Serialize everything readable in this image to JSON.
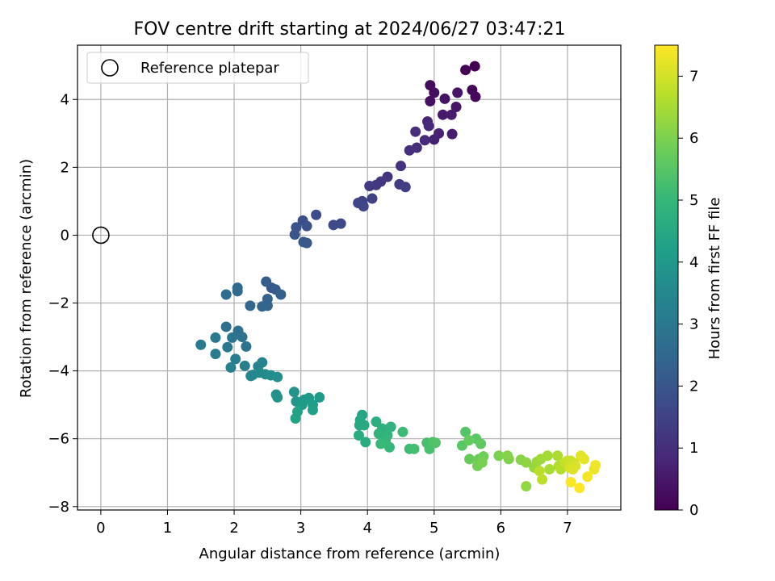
{
  "chart_data": {
    "type": "scatter",
    "title": "FOV centre drift starting at 2024/06/27 03:47:21",
    "xlabel": "Angular distance from reference (arcmin)",
    "ylabel": "Rotation from reference (arcmin)",
    "xlim": [
      -0.35,
      7.8
    ],
    "ylim": [
      -8.1,
      5.6
    ],
    "xticks": [
      0,
      1,
      2,
      3,
      4,
      5,
      6,
      7
    ],
    "yticks": [
      -8,
      -6,
      -4,
      -2,
      0,
      2,
      4
    ],
    "grid": true,
    "legend": {
      "position": "top-left",
      "entries": [
        "Reference platepar"
      ]
    },
    "reference_point": {
      "x": 0,
      "y": 0,
      "marker": "open-circle"
    },
    "colorbar": {
      "label": "Hours from first FF file",
      "colormap": "viridis",
      "range": [
        0,
        7.5
      ],
      "ticks": [
        0,
        1,
        2,
        3,
        4,
        5,
        6,
        7
      ]
    },
    "series": [
      {
        "points": [
          [
            5.61,
            4.98
          ],
          [
            5.47,
            4.87
          ],
          [
            5.57,
            4.28
          ],
          [
            5.62,
            4.08
          ],
          [
            4.94,
            4.42
          ],
          [
            5.0,
            4.2
          ],
          [
            4.94,
            3.95
          ],
          [
            5.16,
            4.02
          ],
          [
            5.35,
            4.2
          ],
          [
            5.33,
            3.78
          ],
          [
            5.13,
            3.55
          ],
          [
            5.26,
            3.55
          ],
          [
            5.27,
            2.98
          ],
          [
            5.0,
            2.82
          ],
          [
            5.07,
            3.0
          ],
          [
            4.9,
            3.35
          ],
          [
            4.92,
            3.22
          ],
          [
            4.86,
            2.8
          ],
          [
            4.74,
            2.58
          ],
          [
            4.72,
            3.05
          ],
          [
            4.63,
            2.5
          ],
          [
            4.5,
            2.04
          ],
          [
            4.3,
            1.72
          ],
          [
            4.2,
            1.58
          ],
          [
            4.13,
            1.48
          ],
          [
            4.03,
            1.45
          ],
          [
            4.48,
            1.5
          ],
          [
            4.57,
            1.42
          ],
          [
            4.07,
            1.08
          ],
          [
            3.92,
            1.0
          ],
          [
            3.86,
            0.95
          ],
          [
            3.94,
            0.85
          ],
          [
            3.6,
            0.34
          ],
          [
            3.49,
            0.3
          ],
          [
            3.23,
            0.6
          ],
          [
            3.03,
            0.43
          ],
          [
            3.09,
            0.27
          ],
          [
            2.93,
            0.23
          ],
          [
            2.91,
            0.02
          ],
          [
            3.04,
            -0.2
          ],
          [
            3.09,
            -0.23
          ],
          [
            2.56,
            -1.55
          ],
          [
            2.62,
            -1.6
          ],
          [
            2.48,
            -1.37
          ],
          [
            2.7,
            -1.75
          ],
          [
            2.5,
            -1.88
          ],
          [
            2.5,
            -2.08
          ],
          [
            2.42,
            -2.1
          ],
          [
            2.24,
            -2.08
          ],
          [
            2.05,
            -1.55
          ],
          [
            2.05,
            -1.65
          ],
          [
            1.88,
            -1.75
          ],
          [
            1.88,
            -2.7
          ],
          [
            2.06,
            -2.82
          ],
          [
            2.12,
            -3.0
          ],
          [
            2.18,
            -3.28
          ],
          [
            1.97,
            -3.02
          ],
          [
            1.9,
            -3.3
          ],
          [
            1.72,
            -3.02
          ],
          [
            1.5,
            -3.23
          ],
          [
            1.72,
            -3.5
          ],
          [
            2.02,
            -3.65
          ],
          [
            2.16,
            -3.85
          ],
          [
            1.95,
            -3.9
          ],
          [
            2.36,
            -3.87
          ],
          [
            2.42,
            -3.75
          ],
          [
            2.28,
            -4.12
          ],
          [
            2.25,
            -4.15
          ],
          [
            2.38,
            -4.05
          ],
          [
            2.47,
            -4.1
          ],
          [
            2.55,
            -4.13
          ],
          [
            2.65,
            -4.18
          ],
          [
            2.63,
            -4.7
          ],
          [
            2.65,
            -4.78
          ],
          [
            2.9,
            -4.62
          ],
          [
            2.93,
            -4.9
          ],
          [
            3.05,
            -4.85
          ],
          [
            3.12,
            -4.8
          ],
          [
            3.28,
            -4.78
          ],
          [
            3.02,
            -5.0
          ],
          [
            3.18,
            -5.0
          ],
          [
            3.18,
            -5.15
          ],
          [
            2.95,
            -5.2
          ],
          [
            2.92,
            -5.4
          ],
          [
            3.92,
            -5.3
          ],
          [
            3.89,
            -5.45
          ],
          [
            3.88,
            -5.6
          ],
          [
            3.95,
            -5.6
          ],
          [
            3.87,
            -5.9
          ],
          [
            3.97,
            -6.1
          ],
          [
            4.13,
            -5.5
          ],
          [
            4.22,
            -5.7
          ],
          [
            4.35,
            -5.65
          ],
          [
            4.17,
            -5.85
          ],
          [
            4.3,
            -5.9
          ],
          [
            4.27,
            -6.05
          ],
          [
            4.33,
            -6.25
          ],
          [
            4.2,
            -6.15
          ],
          [
            4.53,
            -5.8
          ],
          [
            4.63,
            -6.3
          ],
          [
            4.7,
            -6.3
          ],
          [
            4.89,
            -6.12
          ],
          [
            4.93,
            -6.3
          ],
          [
            4.98,
            -6.1
          ],
          [
            5.02,
            -6.12
          ],
          [
            5.47,
            -5.8
          ],
          [
            5.42,
            -6.2
          ],
          [
            5.63,
            -6.0
          ],
          [
            5.7,
            -6.15
          ],
          [
            5.52,
            -6.05
          ],
          [
            5.53,
            -6.6
          ],
          [
            5.67,
            -6.6
          ],
          [
            5.74,
            -6.52
          ],
          [
            5.65,
            -6.8
          ],
          [
            5.72,
            -6.7
          ],
          [
            5.97,
            -6.5
          ],
          [
            6.12,
            -6.6
          ],
          [
            6.1,
            -6.5
          ],
          [
            6.3,
            -6.62
          ],
          [
            6.38,
            -6.7
          ],
          [
            6.38,
            -7.4
          ],
          [
            6.5,
            -6.85
          ],
          [
            6.54,
            -6.68
          ],
          [
            6.6,
            -6.6
          ],
          [
            6.7,
            -6.5
          ],
          [
            6.73,
            -6.9
          ],
          [
            6.85,
            -6.5
          ],
          [
            6.87,
            -6.8
          ],
          [
            6.9,
            -6.9
          ],
          [
            6.58,
            -6.95
          ],
          [
            6.62,
            -7.2
          ],
          [
            6.96,
            -6.7
          ],
          [
            7.0,
            -6.65
          ],
          [
            7.05,
            -6.65
          ],
          [
            7.1,
            -6.72
          ],
          [
            7.03,
            -6.85
          ],
          [
            7.12,
            -6.8
          ],
          [
            7.08,
            -6.9
          ],
          [
            7.2,
            -6.5
          ],
          [
            7.25,
            -6.6
          ],
          [
            7.4,
            -6.9
          ],
          [
            7.42,
            -6.78
          ],
          [
            7.3,
            -7.12
          ],
          [
            7.05,
            -7.28
          ],
          [
            7.18,
            -7.45
          ]
        ]
      }
    ]
  }
}
